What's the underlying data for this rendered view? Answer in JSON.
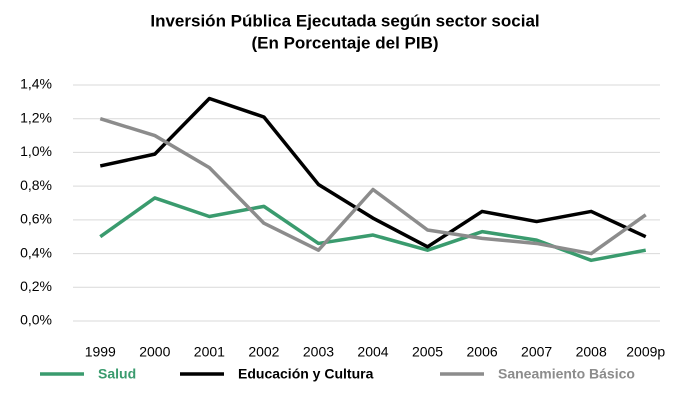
{
  "chart_data": {
    "type": "line",
    "title": "Inversión Pública Ejecutada según sector social",
    "subtitle": "(En Porcentaje del PIB)",
    "categories": [
      "1999",
      "2000",
      "2001",
      "2002",
      "2003",
      "2004",
      "2005",
      "2006",
      "2007",
      "2008",
      "2009p"
    ],
    "series": [
      {
        "name": "Salud",
        "color": "#3a9b6e",
        "values": [
          0.5,
          0.73,
          0.62,
          0.68,
          0.46,
          0.51,
          0.42,
          0.53,
          0.48,
          0.36,
          0.42
        ]
      },
      {
        "name": "Educación y Cultura",
        "color": "#000000",
        "values": [
          0.92,
          0.99,
          1.32,
          1.21,
          0.81,
          0.61,
          0.44,
          0.65,
          0.59,
          0.65,
          0.5
        ]
      },
      {
        "name": "Saneamiento Básico",
        "color": "#8c8c8c",
        "values": [
          1.2,
          1.1,
          0.91,
          0.58,
          0.42,
          0.78,
          0.54,
          0.49,
          0.46,
          0.4,
          0.63
        ]
      }
    ],
    "ylim": [
      0,
      1.4
    ],
    "yticks": [
      {
        "value": 0,
        "label": "0,0%"
      },
      {
        "value": 0.2,
        "label": "0,2%"
      },
      {
        "value": 0.4,
        "label": "0,4%"
      },
      {
        "value": 0.6,
        "label": "0,6%"
      },
      {
        "value": 0.8,
        "label": "0,8%"
      },
      {
        "value": 1.0,
        "label": "1,0%"
      },
      {
        "value": 1.2,
        "label": "1,2%"
      },
      {
        "value": 1.4,
        "label": "1,4%"
      }
    ],
    "grid": true,
    "legend": "bottom"
  }
}
